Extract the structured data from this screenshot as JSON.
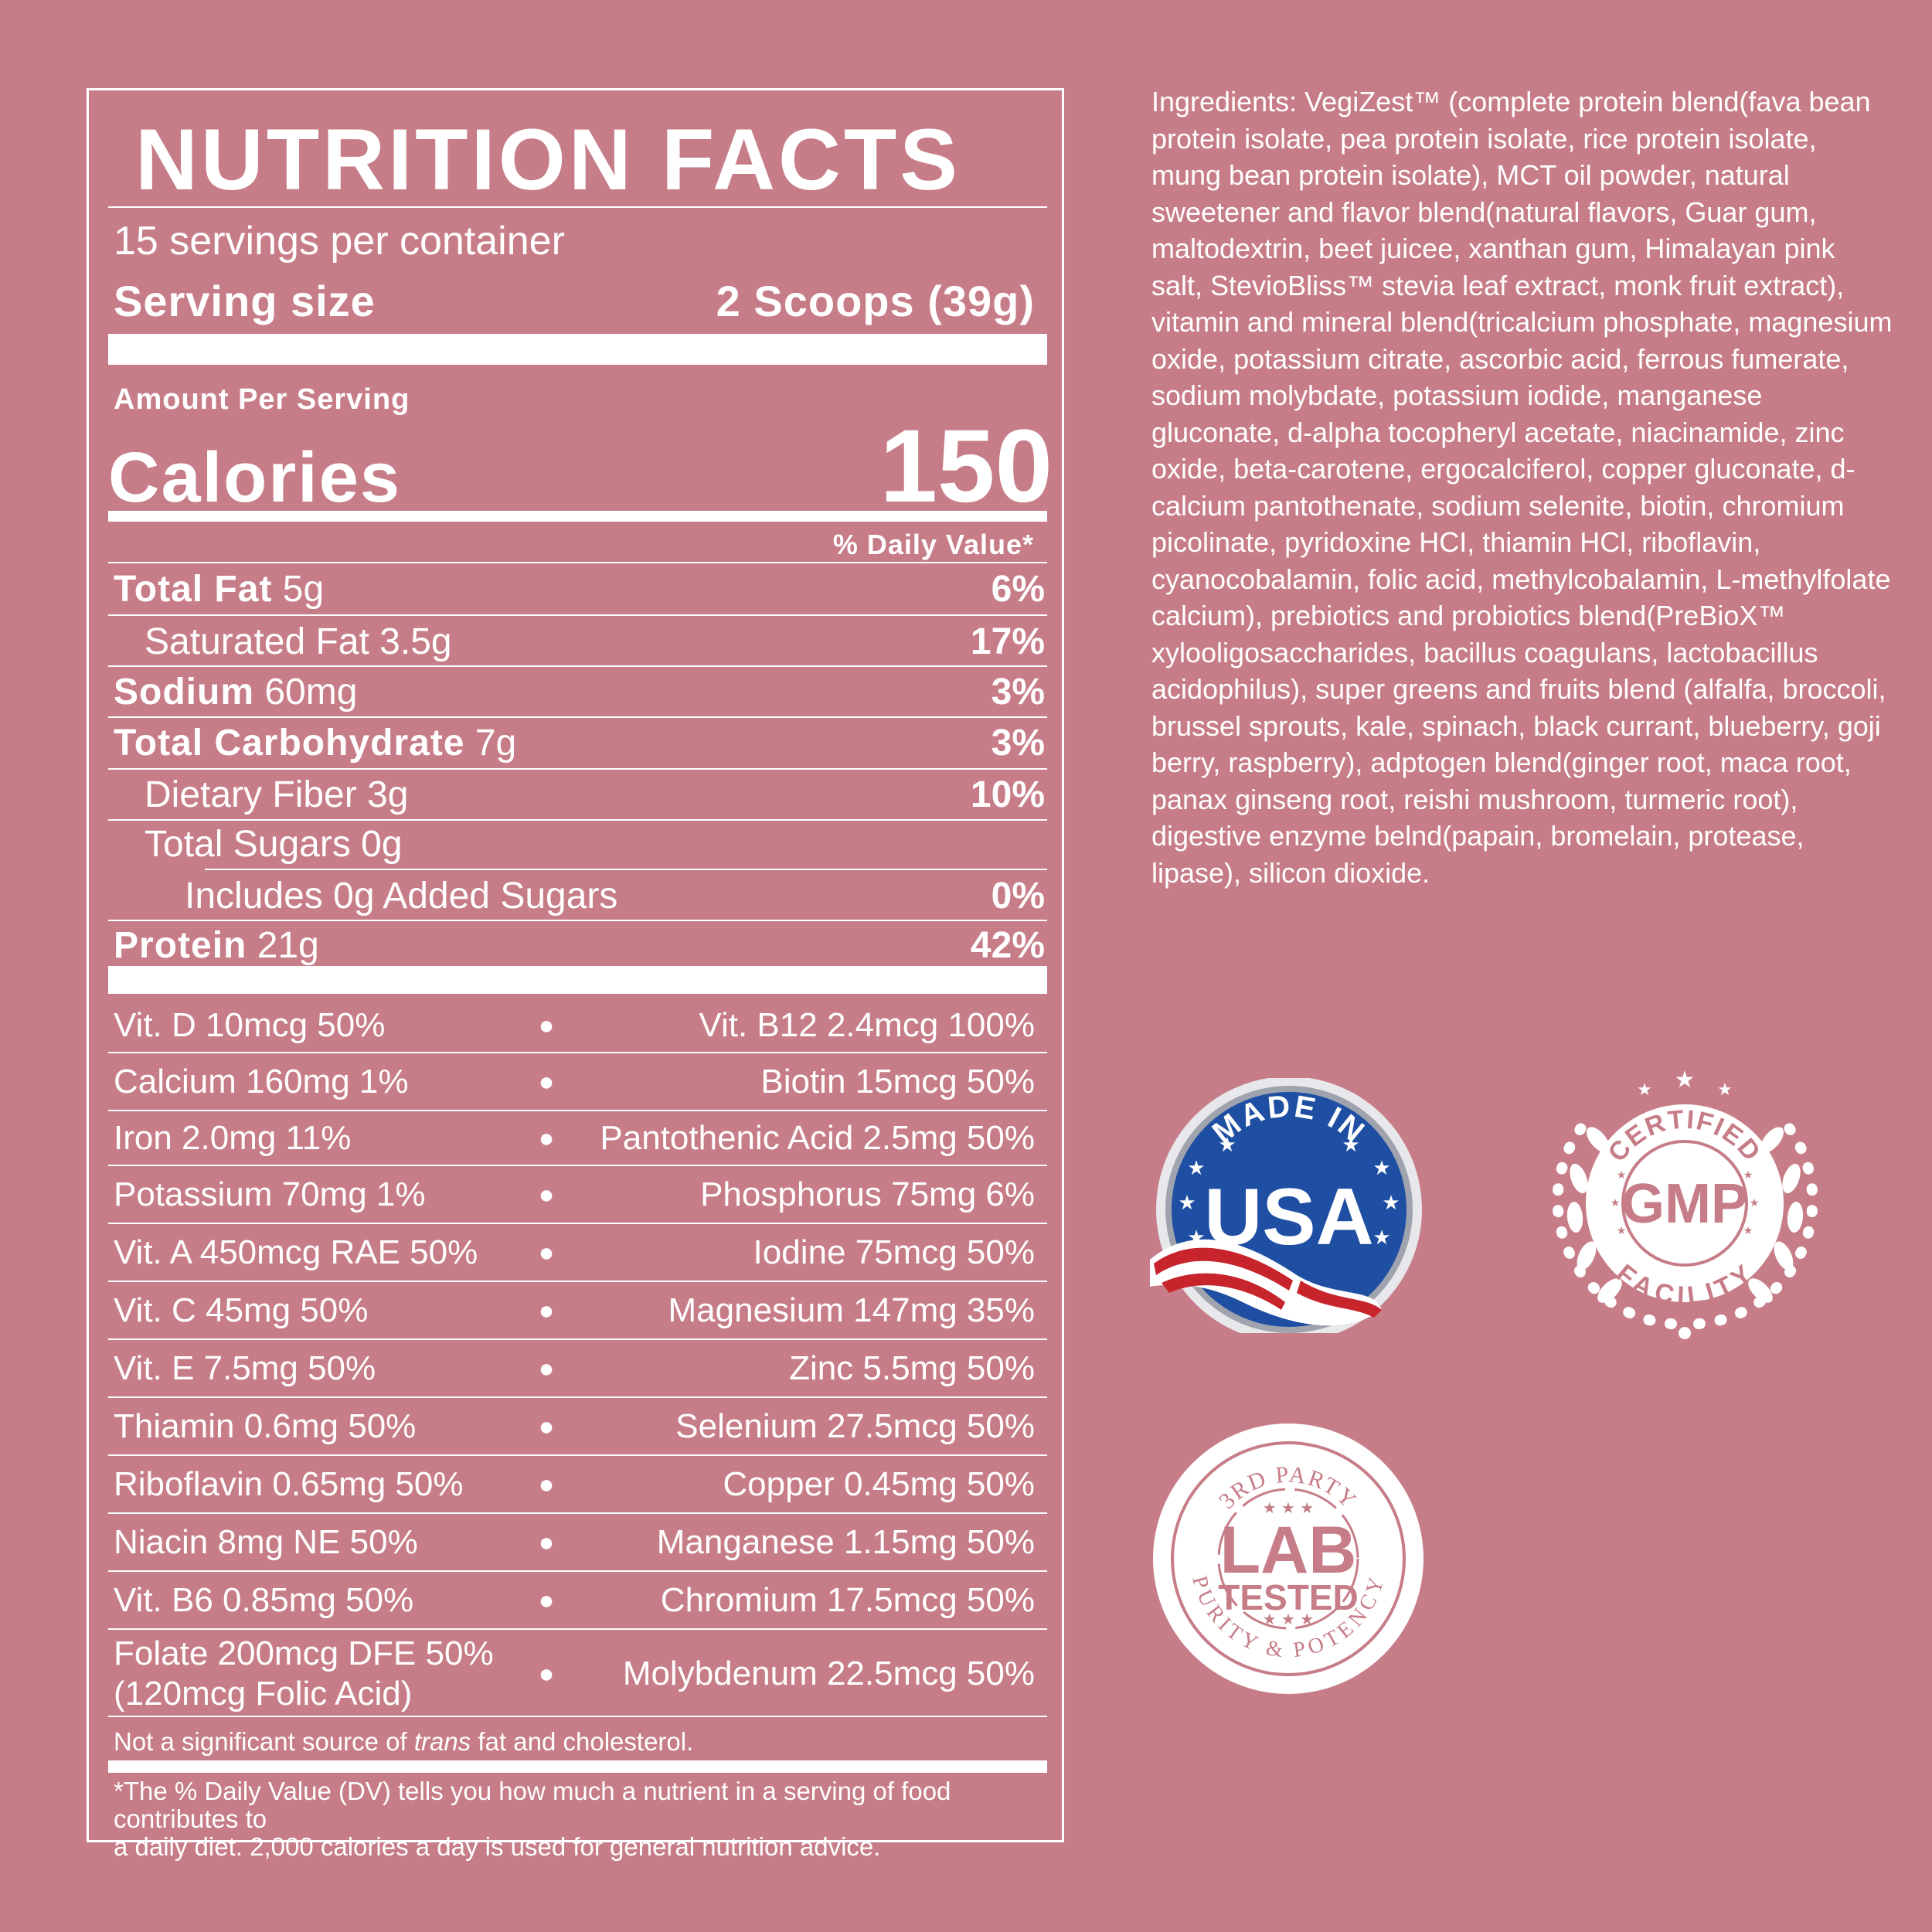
{
  "label": {
    "title": "NUTRITION FACTS",
    "servings_per_container": "15 servings per container",
    "serving_size_label": "Serving size",
    "serving_size_value": "2 Scoops (39g)",
    "amount_per_serving": "Amount Per Serving",
    "calories_label": "Calories",
    "calories_value": "150",
    "daily_value_header": "% Daily Value*",
    "nutrients": [
      {
        "name": "Total Fat",
        "amount": " 5g",
        "pct": "6%"
      },
      {
        "name": "Saturated Fat 3.5g",
        "amount": "",
        "pct": "17%"
      },
      {
        "name": "Sodium",
        "amount": " 60mg",
        "pct": "3%"
      },
      {
        "name": "Total Carbohydrate",
        "amount": " 7g",
        "pct": "3%"
      },
      {
        "name": "Dietary Fiber 3g",
        "amount": "",
        "pct": "10%"
      },
      {
        "name": "Total Sugars 0g",
        "amount": "",
        "pct": ""
      },
      {
        "name": "Includes 0g Added Sugars",
        "amount": "",
        "pct": "0%"
      },
      {
        "name": "Protein",
        "amount": " 21g",
        "pct": "42%"
      }
    ],
    "vitamins": [
      {
        "left": "Vit. D 10mcg 50%",
        "right": "Vit. B12 2.4mcg 100%"
      },
      {
        "left": "Calcium 160mg 1%",
        "right": "Biotin 15mcg 50%"
      },
      {
        "left": "Iron 2.0mg 11%",
        "right": "Pantothenic Acid 2.5mg 50%"
      },
      {
        "left": "Potassium 70mg 1%",
        "right": "Phosphorus 75mg 6%"
      },
      {
        "left": "Vit. A 450mcg RAE 50%",
        "right": "Iodine 75mcg 50%"
      },
      {
        "left": "Vit. C 45mg 50%",
        "right": "Magnesium 147mg 35%"
      },
      {
        "left": "Vit. E 7.5mg 50%",
        "right": "Zinc 5.5mg 50%"
      },
      {
        "left": "Thiamin 0.6mg 50%",
        "right": "Selenium 27.5mcg 50%"
      },
      {
        "left": "Riboflavin 0.65mg 50%",
        "right": "Copper 0.45mg 50%"
      },
      {
        "left": "Niacin 8mg NE 50%",
        "right": "Manganese 1.15mg 50%"
      },
      {
        "left": "Vit. B6 0.85mg 50%",
        "right": "Chromium 17.5mcg 50%"
      },
      {
        "left": "Folate 200mcg DFE 50%",
        "left2": "(120mcg Folic Acid)",
        "right": "Molybdenum 22.5mcg 50%"
      }
    ],
    "bullet": "●",
    "note_trans_before": "Not a significant source of ",
    "note_trans_italic": "trans",
    "note_trans_after": " fat and cholesterol.",
    "dv_note_line1": "*The % Daily Value (DV) tells you how much a nutrient in a serving of food contributes to",
    "dv_note_line2": "a daily diet. 2,000 calories a day is used for general nutrition advice."
  },
  "ingredients_text": "Ingredients: VegiZest™ (complete protein blend(fava bean protein isolate, pea protein isolate, rice protein isolate, mung bean protein isolate), MCT oil powder, natural sweetener and flavor blend(natural flavors, Guar gum, maltodextrin, beet juicee, xanthan gum, Himalayan pink salt, StevioBliss™ stevia leaf extract, monk fruit extract), vitamin and mineral blend(tricalcium phosphate, magnesium oxide, potassium citrate, ascorbic acid, ferrous fumerate, sodium molybdate, potassium iodide, manganese gluconate, d-alpha tocopheryl acetate, niacinamide, zinc oxide, beta-carotene, ergocalciferol, copper gluconate, d-calcium pantothenate, sodium selenite, biotin, chromium picolinate, pyridoxine HCI, thiamin HCl, riboflavin, cyanocobalamin, folic acid, methylcobalamin, L-methylfolate calcium), prebiotics and probiotics blend(PreBioX™ xylooligosaccharides, bacillus coagulans, lactobacillus acidophilus), super greens and fruits blend (alfalfa, broccoli, brussel sprouts, kale, spinach, black currant, blueberry, goji berry, raspberry), adptogen blend(ginger root, maca root, panax ginseng root, reishi mushroom, turmeric root), digestive enzyme belnd(papain, bromelain, protease, lipase), silicon dioxide.",
  "badges": {
    "usa": {
      "top_text": "MADE IN",
      "main_text": "USA"
    },
    "gmp": {
      "top_text": "CERTIFIED",
      "main_text": "GMP",
      "bottom_text": "FACILITY"
    },
    "lab": {
      "top_text": "3RD PARTY",
      "main_text_1": "LAB",
      "main_text_2": "TESTED",
      "bottom_text": "PURITY & POTENCY"
    }
  },
  "colors": {
    "background": "#c67d88",
    "foreground": "#ffffff",
    "usa_blue": "#1f4fa3",
    "usa_red": "#c8242c"
  }
}
